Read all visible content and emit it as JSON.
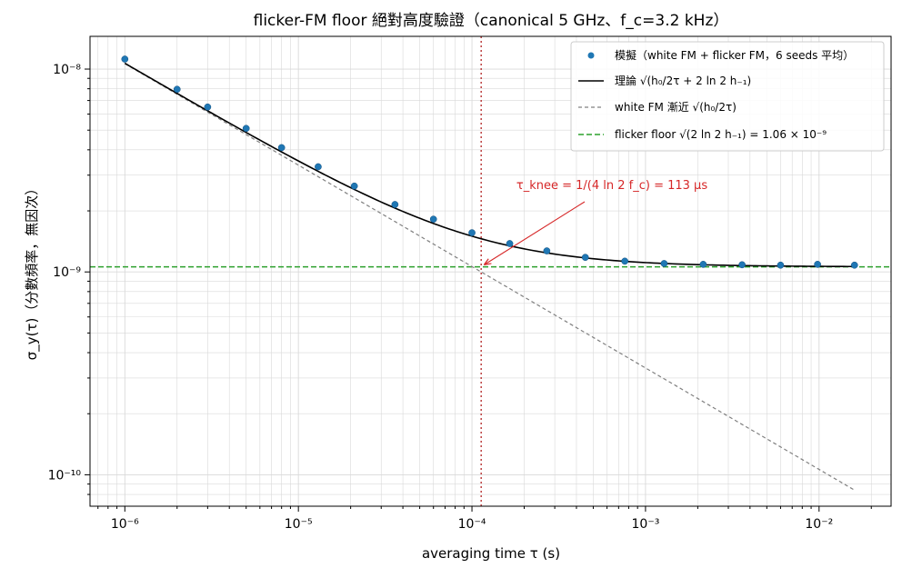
{
  "chart_data": {
    "type": "scatter",
    "title": "flicker-FM floor 絕對高度驗證（canonical 5 GHz、f_c=3.2 kHz）",
    "xlabel": "averaging time τ (s)",
    "ylabel": "σ_y(τ)（分數頻率，無因次）",
    "x_scale": "log",
    "y_scale": "log",
    "xlim": [
      6.3e-07,
      0.026
    ],
    "ylim": [
      7e-11,
      1.45e-08
    ],
    "x_ticks": [
      {
        "value": 1e-06,
        "label": "10⁻⁶"
      },
      {
        "value": 1e-05,
        "label": "10⁻⁵"
      },
      {
        "value": 0.0001,
        "label": "10⁻⁴"
      },
      {
        "value": 0.001,
        "label": "10⁻³"
      },
      {
        "value": 0.01,
        "label": "10⁻²"
      }
    ],
    "y_ticks": [
      {
        "value": 1e-10,
        "label": "10⁻¹⁰"
      },
      {
        "value": 1e-09,
        "label": "10⁻⁹"
      },
      {
        "value": 1e-08,
        "label": "10⁻⁸"
      }
    ],
    "grid": true,
    "legend_position": "top-right",
    "colors": {
      "measured": "#1f77b4",
      "theory": "#000000",
      "white_fm": "#808080",
      "flicker_floor": "#2ca02c",
      "knee": "#d62728",
      "grid": "#d9d9d9"
    },
    "series": [
      {
        "name": "模擬（white FM + flicker FM，6 seeds 平均）",
        "kind": "markers",
        "x": [
          1e-06,
          2e-06,
          3e-06,
          5e-06,
          8e-06,
          1.3e-05,
          2.1e-05,
          3.6e-05,
          6e-05,
          0.0001,
          0.000165,
          0.00027,
          0.00045,
          0.00076,
          0.00128,
          0.00215,
          0.0036,
          0.006,
          0.0098,
          0.016
        ],
        "y": [
          1.12e-08,
          7.95e-09,
          6.5e-09,
          5.1e-09,
          4.1e-09,
          3.3e-09,
          2.65e-09,
          2.15e-09,
          1.82e-09,
          1.56e-09,
          1.38e-09,
          1.27e-09,
          1.18e-09,
          1.13e-09,
          1.1e-09,
          1.09e-09,
          1.085e-09,
          1.08e-09,
          1.09e-09,
          1.08e-09
        ]
      },
      {
        "name": "理論 √(h₀/2τ + 2 ln 2 h₋₁)",
        "kind": "curve",
        "formula": "sqrt(a/τ + b)",
        "a": 1.13e-22,
        "b": 1.1236e-18,
        "x_range": [
          1e-06,
          0.016
        ]
      },
      {
        "name": "white FM 漸近 √(h₀/2τ)",
        "kind": "curve",
        "formula": "sqrt(a/τ)",
        "a": 1.13e-22,
        "x_range": [
          1e-06,
          0.016
        ]
      },
      {
        "name": "flicker floor √(2 ln 2 h₋₁) = 1.06 × 10⁻⁹",
        "kind": "hline",
        "y": 1.06e-09
      }
    ],
    "knee": {
      "x": 0.000113,
      "label": "τ_knee = 1/(4 ln 2 f_c) = 113 μs"
    }
  }
}
